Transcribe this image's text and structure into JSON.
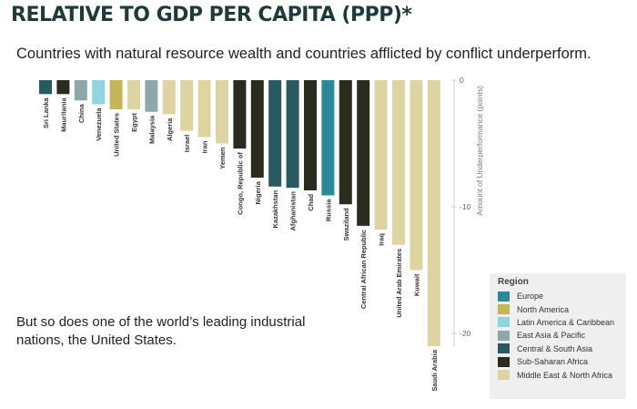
{
  "title": "RELATIVE TO GDP PER CAPITA (PPP)*",
  "subtitle": "Countries with natural resource wealth and countries afflicted by conflict underperform.",
  "note": "But so does one of the world’s leading industrial nations, the United States.",
  "legend": {
    "title": "Region",
    "items": [
      {
        "label": "Europe",
        "color": "#2a8a99"
      },
      {
        "label": "North America",
        "color": "#c4b45a"
      },
      {
        "label": "Latin America & Caribbean",
        "color": "#8fd4e0"
      },
      {
        "label": "East Asia & Pacific",
        "color": "#8ea7aa"
      },
      {
        "label": "Central & South Asia",
        "color": "#285a60"
      },
      {
        "label": "Sub-Saharan Africa",
        "color": "#2b2b1e"
      },
      {
        "label": "Middle East & North Africa",
        "color": "#ddd4a2"
      }
    ]
  },
  "chart_data": {
    "type": "bar",
    "ylabel": "Amount of Underperformance (points)",
    "ylim": [
      -21,
      0
    ],
    "yticks": [
      0,
      -10,
      -20
    ],
    "categories": [
      "Sri Lanka",
      "Mauritania",
      "China",
      "Venezuela",
      "United States",
      "Egypt",
      "Malaysia",
      "Algeria",
      "Israel",
      "Iran",
      "Yemen",
      "Congo, Republic of",
      "Nigeria",
      "Kazakhstan",
      "Afghanistan",
      "Chad",
      "Russia",
      "Swaziland",
      "Central African Republic",
      "Iraq",
      "United Arab Emirates",
      "Kuwait",
      "Saudi Arabia"
    ],
    "values": [
      -1.1,
      -1.1,
      -1.6,
      -1.9,
      -2.3,
      -2.3,
      -2.5,
      -2.7,
      -4.0,
      -4.5,
      -5.0,
      -5.4,
      -7.7,
      -8.4,
      -8.5,
      -8.7,
      -9.1,
      -9.8,
      -11.5,
      -11.8,
      -13.0,
      -15.0,
      -21.0
    ],
    "regions": [
      "Central & South Asia",
      "Sub-Saharan Africa",
      "East Asia & Pacific",
      "Latin America & Caribbean",
      "North America",
      "Middle East & North Africa",
      "East Asia & Pacific",
      "Middle East & North Africa",
      "Middle East & North Africa",
      "Middle East & North Africa",
      "Middle East & North Africa",
      "Sub-Saharan Africa",
      "Sub-Saharan Africa",
      "Central & South Asia",
      "Central & South Asia",
      "Sub-Saharan Africa",
      "Europe",
      "Sub-Saharan Africa",
      "Sub-Saharan Africa",
      "Middle East & North Africa",
      "Middle East & North Africa",
      "Middle East & North Africa",
      "Middle East & North Africa"
    ]
  }
}
